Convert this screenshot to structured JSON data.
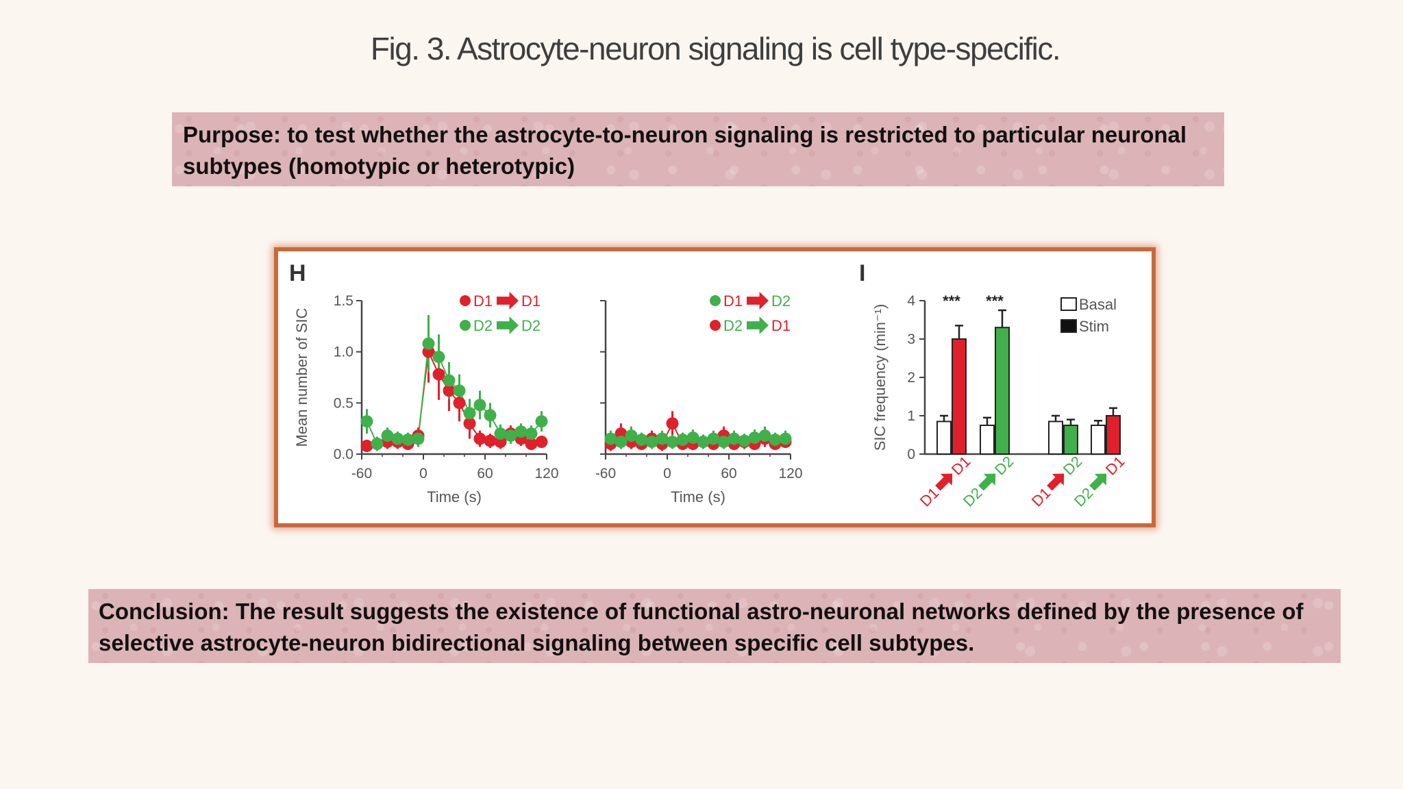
{
  "slide": {
    "title": "Fig. 3. Astrocyte-neuron signaling is cell type-specific.",
    "purpose_text": "Purpose: to test whether the astrocyte-to-neuron signaling is restricted to particular neuronal subtypes (homotypic or heterotypic)",
    "conclusion_text": "Conclusion: The result suggests the existence of functional astro-neuronal networks defined by the presence of selective astrocyte-neuron bidirectional signaling between specific cell subtypes."
  },
  "colors": {
    "red": "#e0202a",
    "green": "#3fb04a",
    "axis": "#444444",
    "frame": "#c8693b"
  },
  "chart_data": [
    {
      "panel": "H",
      "type": "scatter",
      "xlabel": "Time (s)",
      "ylabel": "Mean number of SIC",
      "xlim": [
        -60,
        120
      ],
      "ylim": [
        0,
        1.5
      ],
      "xticks": [
        "-60",
        "0",
        "60",
        "120"
      ],
      "yticks": [
        "0.0",
        "0.5",
        "1.0",
        "1.5"
      ],
      "legend": [
        {
          "from": "D1",
          "to": "D1",
          "dot": "red",
          "arrow": "red",
          "from_color": "red",
          "to_color": "red"
        },
        {
          "from": "D2",
          "to": "D2",
          "dot": "green",
          "arrow": "green",
          "from_color": "green",
          "to_color": "green"
        }
      ],
      "series": [
        {
          "color": "red",
          "x": [
            -55,
            -45,
            -35,
            -25,
            -15,
            -5,
            5,
            15,
            25,
            35,
            45,
            55,
            65,
            75,
            85,
            95,
            105,
            115
          ],
          "y": [
            0.08,
            0.1,
            0.12,
            0.12,
            0.1,
            0.18,
            1.0,
            0.78,
            0.62,
            0.5,
            0.3,
            0.15,
            0.13,
            0.12,
            0.2,
            0.15,
            0.1,
            0.12
          ],
          "err": [
            0.06,
            0.06,
            0.07,
            0.07,
            0.06,
            0.08,
            0.3,
            0.25,
            0.2,
            0.18,
            0.15,
            0.08,
            0.07,
            0.07,
            0.08,
            0.07,
            0.06,
            0.06
          ]
        },
        {
          "color": "green",
          "x": [
            -55,
            -45,
            -35,
            -25,
            -15,
            -5,
            5,
            15,
            25,
            35,
            45,
            55,
            65,
            75,
            85,
            95,
            105,
            115
          ],
          "y": [
            0.32,
            0.1,
            0.18,
            0.15,
            0.14,
            0.15,
            1.08,
            0.95,
            0.72,
            0.62,
            0.4,
            0.48,
            0.38,
            0.2,
            0.18,
            0.22,
            0.2,
            0.32
          ],
          "err": [
            0.12,
            0.07,
            0.08,
            0.07,
            0.07,
            0.08,
            0.28,
            0.22,
            0.18,
            0.16,
            0.14,
            0.14,
            0.12,
            0.09,
            0.08,
            0.08,
            0.08,
            0.1
          ]
        }
      ]
    },
    {
      "panel": "H-right",
      "type": "scatter",
      "xlabel": "Time (s)",
      "ylabel": "",
      "xlim": [
        -60,
        120
      ],
      "ylim": [
        0,
        1.5
      ],
      "xticks": [
        "-60",
        "0",
        "60",
        "120"
      ],
      "legend": [
        {
          "from": "D1",
          "to": "D2",
          "dot": "green",
          "arrow": "red",
          "from_color": "red",
          "to_color": "green"
        },
        {
          "from": "D2",
          "to": "D1",
          "dot": "red",
          "arrow": "green",
          "from_color": "green",
          "to_color": "red"
        }
      ],
      "series": [
        {
          "color": "red",
          "x": [
            -55,
            -45,
            -35,
            -25,
            -15,
            -5,
            5,
            15,
            25,
            35,
            45,
            55,
            65,
            75,
            85,
            95,
            105,
            115
          ],
          "y": [
            0.1,
            0.2,
            0.12,
            0.1,
            0.15,
            0.1,
            0.3,
            0.1,
            0.1,
            0.12,
            0.1,
            0.18,
            0.1,
            0.12,
            0.1,
            0.15,
            0.1,
            0.12
          ],
          "err": [
            0.07,
            0.1,
            0.07,
            0.06,
            0.08,
            0.07,
            0.12,
            0.06,
            0.06,
            0.07,
            0.06,
            0.09,
            0.06,
            0.07,
            0.06,
            0.08,
            0.06,
            0.06
          ]
        },
        {
          "color": "green",
          "x": [
            -55,
            -45,
            -35,
            -25,
            -15,
            -5,
            5,
            15,
            25,
            35,
            45,
            55,
            65,
            75,
            85,
            95,
            105,
            115
          ],
          "y": [
            0.15,
            0.12,
            0.18,
            0.14,
            0.12,
            0.15,
            0.12,
            0.14,
            0.16,
            0.12,
            0.15,
            0.12,
            0.15,
            0.13,
            0.16,
            0.18,
            0.14,
            0.15
          ],
          "err": [
            0.08,
            0.07,
            0.09,
            0.07,
            0.07,
            0.08,
            0.07,
            0.07,
            0.08,
            0.07,
            0.08,
            0.07,
            0.08,
            0.07,
            0.08,
            0.09,
            0.07,
            0.08
          ]
        }
      ]
    },
    {
      "panel": "I",
      "type": "bar",
      "ylabel": "SIC frequency (min⁻¹)",
      "ylim": [
        0,
        4
      ],
      "yticks": [
        "0",
        "1",
        "2",
        "3",
        "4"
      ],
      "legend": [
        "Basal",
        "Stim"
      ],
      "categories": [
        {
          "from": "D1",
          "to": "D1",
          "from_color": "red",
          "arrow": "red",
          "to_color": "red",
          "stim_color": "red",
          "sig": "***"
        },
        {
          "from": "D2",
          "to": "D2",
          "from_color": "green",
          "arrow": "green",
          "to_color": "green",
          "stim_color": "green",
          "sig": "***"
        },
        {
          "from": "D1",
          "to": "D2",
          "from_color": "red",
          "arrow": "red",
          "to_color": "green",
          "stim_color": "green",
          "sig": ""
        },
        {
          "from": "D2",
          "to": "D1",
          "from_color": "green",
          "arrow": "green",
          "to_color": "red",
          "stim_color": "red",
          "sig": ""
        }
      ],
      "series": [
        {
          "name": "Basal",
          "values": [
            0.85,
            0.75,
            0.85,
            0.75
          ],
          "err": [
            0.15,
            0.2,
            0.15,
            0.12
          ]
        },
        {
          "name": "Stim",
          "values": [
            3.0,
            3.3,
            0.75,
            1.0
          ],
          "err": [
            0.35,
            0.45,
            0.15,
            0.2
          ]
        }
      ]
    }
  ]
}
